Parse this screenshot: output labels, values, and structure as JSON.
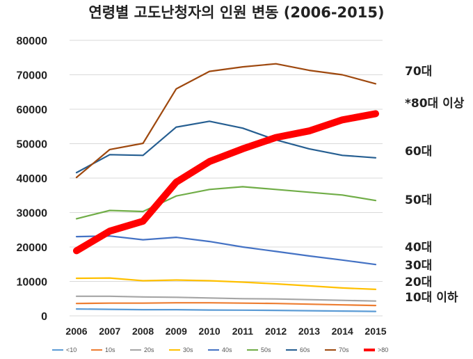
{
  "chart_data": {
    "type": "line",
    "title": "연령별 고도난청자의 인원 변동 (2006-2015)",
    "x": [
      "2006",
      "2007",
      "2008",
      "2009",
      "2010",
      "2011",
      "2012",
      "2013",
      "2014",
      "2015"
    ],
    "ylim": [
      0,
      80000
    ],
    "yticks": [
      "80000",
      "70000",
      "60000",
      "50000",
      "40000",
      "30000",
      "20000",
      "10000",
      "0"
    ],
    "grid": true,
    "legend_position": "bottom",
    "series": [
      {
        "name": "<10",
        "color": "#5b9bd5",
        "values": [
          2000,
          1900,
          1800,
          1800,
          1700,
          1650,
          1600,
          1500,
          1400,
          1300
        ]
      },
      {
        "name": "10s",
        "color": "#ed7d31",
        "values": [
          3600,
          3700,
          3700,
          3800,
          3800,
          3700,
          3600,
          3400,
          3200,
          3000
        ]
      },
      {
        "name": "20s",
        "color": "#a5a5a5",
        "values": [
          5700,
          5700,
          5500,
          5400,
          5200,
          5000,
          4900,
          4700,
          4500,
          4300
        ]
      },
      {
        "name": "30s",
        "color": "#ffc000",
        "values": [
          10900,
          11000,
          10200,
          10400,
          10200,
          9800,
          9300,
          8700,
          8100,
          7700
        ]
      },
      {
        "name": "40s",
        "color": "#4472c4",
        "values": [
          23000,
          23200,
          22100,
          22800,
          21600,
          20000,
          18700,
          17400,
          16200,
          14900
        ]
      },
      {
        "name": "50s",
        "color": "#70ad47",
        "values": [
          28200,
          30600,
          30300,
          34800,
          36700,
          37500,
          36700,
          35900,
          35100,
          33500
        ]
      },
      {
        "name": "60s",
        "color": "#255e91",
        "values": [
          41600,
          46800,
          46600,
          54800,
          56500,
          54500,
          51100,
          48500,
          46600,
          45900
        ]
      },
      {
        "name": "70s",
        "color": "#9e480e",
        "values": [
          40200,
          48300,
          50100,
          65900,
          71000,
          72300,
          73200,
          71300,
          70000,
          67400
        ]
      },
      {
        "name": ">80",
        "color": "#ff0000",
        "values": [
          18900,
          24600,
          27500,
          38800,
          44800,
          48500,
          51800,
          53700,
          56900,
          58700
        ]
      }
    ],
    "annotations": [
      "70대",
      "*80대 이상",
      "60대",
      "50대",
      "40대",
      "30대",
      "20대",
      "10대 이하"
    ]
  }
}
